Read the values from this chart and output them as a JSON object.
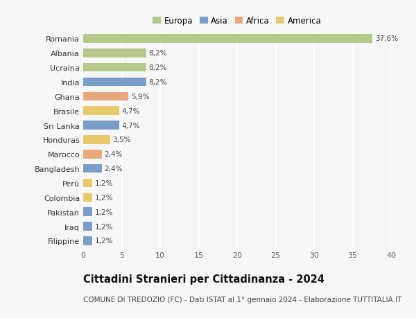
{
  "countries": [
    "Filippine",
    "Iraq",
    "Pakistan",
    "Colombia",
    "Perù",
    "Bangladesh",
    "Marocco",
    "Honduras",
    "Sri Lanka",
    "Brasile",
    "Ghana",
    "India",
    "Ucraina",
    "Albania",
    "Romania"
  ],
  "values": [
    1.2,
    1.2,
    1.2,
    1.2,
    1.2,
    2.4,
    2.4,
    3.5,
    4.7,
    4.7,
    5.9,
    8.2,
    8.2,
    8.2,
    37.6
  ],
  "labels": [
    "1,2%",
    "1,2%",
    "1,2%",
    "1,2%",
    "1,2%",
    "2,4%",
    "2,4%",
    "3,5%",
    "4,7%",
    "4,7%",
    "5,9%",
    "8,2%",
    "8,2%",
    "8,2%",
    "37,6%"
  ],
  "colors": [
    "#7b9dc9",
    "#7b9dc9",
    "#7b9dc9",
    "#e8c96b",
    "#e8c96b",
    "#7b9dc9",
    "#e8a87c",
    "#e8c96b",
    "#7b9dc9",
    "#e8c96b",
    "#e8a87c",
    "#7b9dc9",
    "#b5c98a",
    "#b5c98a",
    "#b5c98a"
  ],
  "legend_labels": [
    "Europa",
    "Asia",
    "Africa",
    "America"
  ],
  "legend_colors": [
    "#b5c98a",
    "#7b9dc9",
    "#e8a87c",
    "#e8c96b"
  ],
  "xlim": [
    0,
    40
  ],
  "xticks": [
    0,
    5,
    10,
    15,
    20,
    25,
    30,
    35,
    40
  ],
  "title": "Cittadini Stranieri per Cittadinanza - 2024",
  "subtitle": "COMUNE DI TREDOZIO (FC) - Dati ISTAT al 1° gennaio 2024 - Elaborazione TUTTITALIA.IT",
  "background_color": "#f7f7f7",
  "bar_height": 0.6,
  "label_fontsize": 7.5,
  "tick_fontsize": 8,
  "title_fontsize": 10.5,
  "subtitle_fontsize": 7.5
}
